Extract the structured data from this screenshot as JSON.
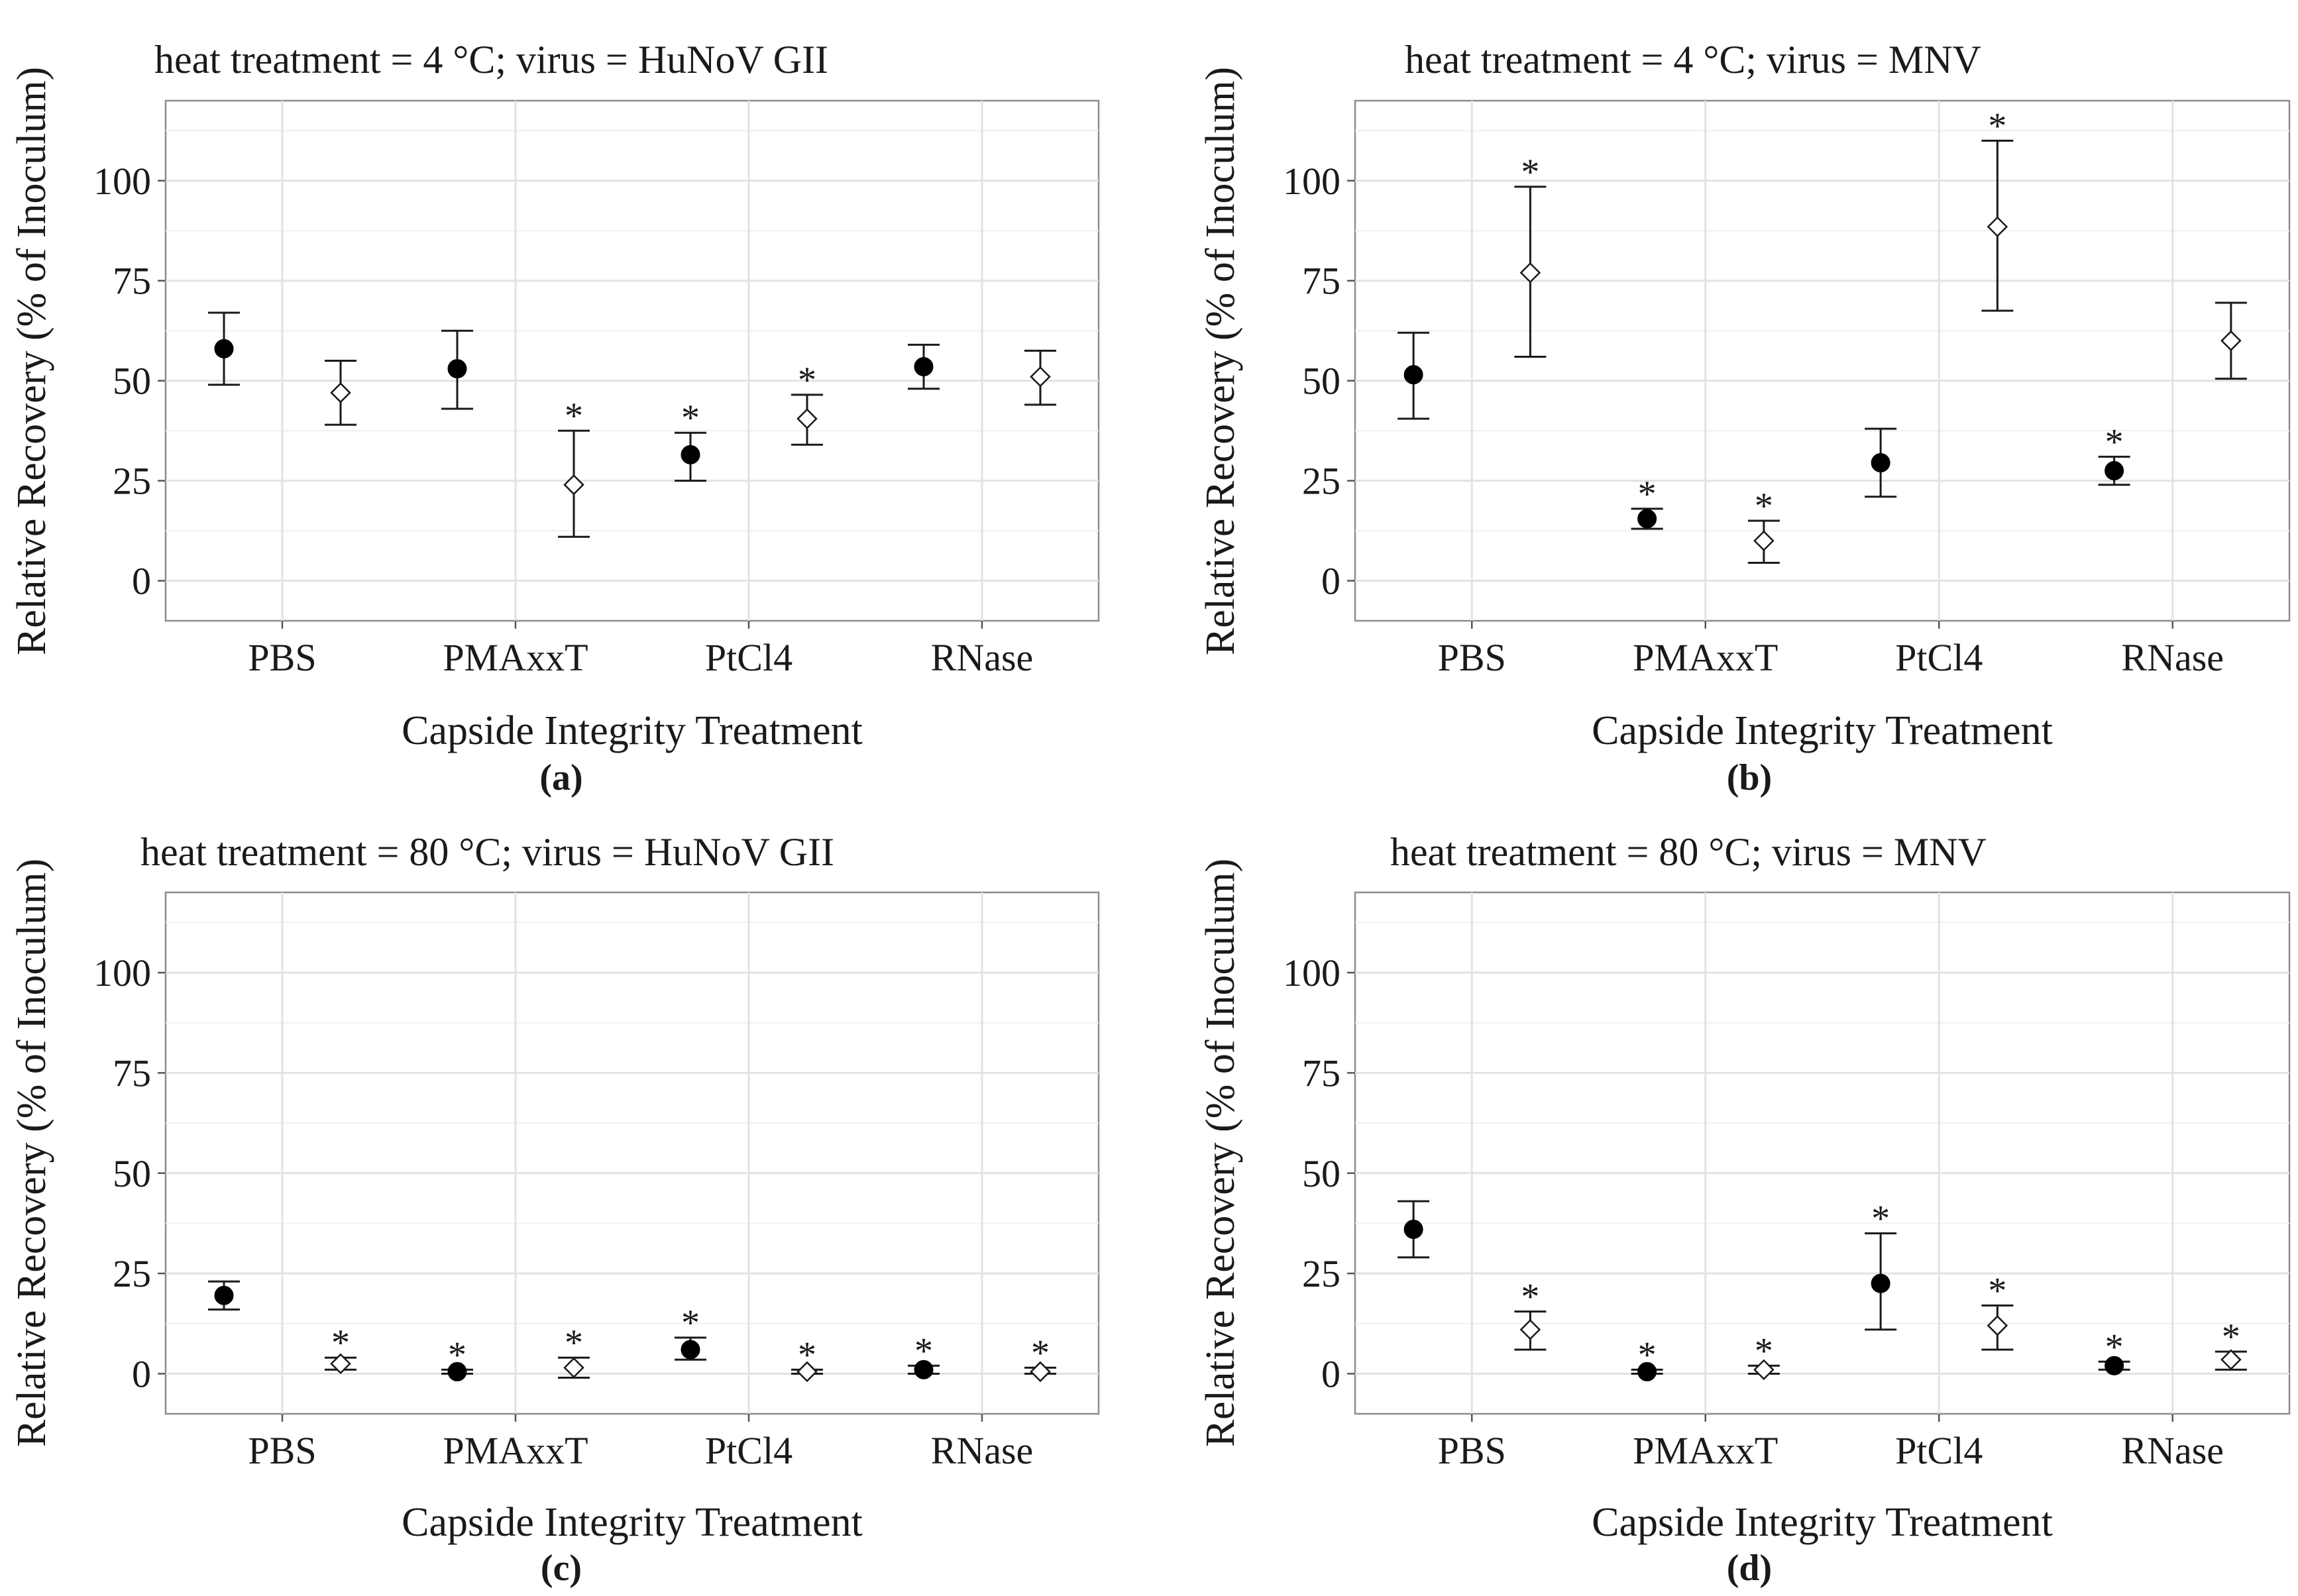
{
  "figure": {
    "panels": [
      {
        "id": "a",
        "label": "(a)",
        "title": "heat treatment = 4 °C; virus = HuNoV GII"
      },
      {
        "id": "b",
        "label": "(b)",
        "title": "heat treatment = 4 °C; virus = MNV"
      },
      {
        "id": "c",
        "label": "(c)",
        "title": "heat treatment = 80 °C; virus = HuNoV GII"
      },
      {
        "id": "d",
        "label": "(d)",
        "title": "heat treatment = 80 °C; virus = MNV"
      }
    ]
  },
  "chart_data": [
    {
      "type": "scatter",
      "title": "heat treatment = 4 °C; virus = HuNoV GII",
      "panel_label": "(a)",
      "xlabel": "Capside Integrity Treatment",
      "ylabel": "Relative Recovery (% of Inoculum)",
      "categories": [
        "PBS",
        "PMAxxT",
        "PtCl4",
        "RNase"
      ],
      "ylim": [
        -10,
        120
      ],
      "yticks": [
        0,
        25,
        50,
        75,
        100
      ],
      "grid": true,
      "series": [
        {
          "marker": "filled-circle",
          "values": [
            58,
            53,
            31.5,
            53.5
          ],
          "err_low": [
            49,
            43,
            25,
            48
          ],
          "err_high": [
            67,
            62.5,
            37,
            59
          ],
          "significant": [
            false,
            false,
            true,
            false
          ]
        },
        {
          "marker": "open-diamond",
          "values": [
            47,
            24,
            40.5,
            51
          ],
          "err_low": [
            39,
            11,
            34,
            44
          ],
          "err_high": [
            55,
            37.5,
            46.5,
            57.5
          ],
          "significant": [
            false,
            true,
            true,
            false
          ]
        }
      ]
    },
    {
      "type": "scatter",
      "title": "heat treatment = 4 °C; virus = MNV",
      "panel_label": "(b)",
      "xlabel": "Capside Integrity Treatment",
      "ylabel": "Relative Recovery (% of Inoculum)",
      "categories": [
        "PBS",
        "PMAxxT",
        "PtCl4",
        "RNase"
      ],
      "ylim": [
        -10,
        120
      ],
      "yticks": [
        0,
        25,
        50,
        75,
        100
      ],
      "grid": true,
      "series": [
        {
          "marker": "filled-circle",
          "values": [
            51.5,
            15.5,
            29.5,
            27.5
          ],
          "err_low": [
            40.5,
            13,
            21,
            24
          ],
          "err_high": [
            62,
            18,
            38,
            31
          ],
          "significant": [
            false,
            true,
            false,
            true
          ]
        },
        {
          "marker": "open-diamond",
          "values": [
            77,
            10,
            88.5,
            60
          ],
          "err_low": [
            56,
            4.5,
            67.5,
            50.5
          ],
          "err_high": [
            98.5,
            15,
            110,
            69.5
          ],
          "significant": [
            true,
            true,
            true,
            false
          ]
        }
      ]
    },
    {
      "type": "scatter",
      "title": "heat treatment = 80 °C; virus = HuNoV GII",
      "panel_label": "(c)",
      "xlabel": "Capside Integrity Treatment",
      "ylabel": "Relative Recovery (% of Inoculum)",
      "categories": [
        "PBS",
        "PMAxxT",
        "PtCl4",
        "RNase"
      ],
      "ylim": [
        -10,
        120
      ],
      "yticks": [
        0,
        25,
        50,
        75,
        100
      ],
      "grid": true,
      "series": [
        {
          "marker": "filled-circle",
          "values": [
            19.5,
            0.5,
            6,
            1
          ],
          "err_low": [
            16,
            0,
            3.5,
            0
          ],
          "err_high": [
            23,
            1,
            9,
            2
          ],
          "significant": [
            false,
            true,
            true,
            true
          ]
        },
        {
          "marker": "open-diamond",
          "values": [
            2.5,
            1.5,
            0.5,
            0.5
          ],
          "err_low": [
            1,
            -1,
            0,
            0
          ],
          "err_high": [
            4,
            4,
            1,
            1.5
          ],
          "significant": [
            true,
            true,
            true,
            true
          ]
        }
      ]
    },
    {
      "type": "scatter",
      "title": "heat treatment = 80 °C; virus = MNV",
      "panel_label": "(d)",
      "xlabel": "Capside Integrity Treatment",
      "ylabel": "Relative Recovery (% of Inoculum)",
      "categories": [
        "PBS",
        "PMAxxT",
        "PtCl4",
        "RNase"
      ],
      "ylim": [
        -10,
        120
      ],
      "yticks": [
        0,
        25,
        50,
        75,
        100
      ],
      "grid": true,
      "series": [
        {
          "marker": "filled-circle",
          "values": [
            36,
            0.5,
            22.5,
            2
          ],
          "err_low": [
            29,
            0,
            11,
            1
          ],
          "err_high": [
            43,
            1,
            35,
            3
          ],
          "significant": [
            false,
            true,
            true,
            true
          ]
        },
        {
          "marker": "open-diamond",
          "values": [
            11,
            1,
            12,
            3.5
          ],
          "err_low": [
            6,
            0,
            6,
            1
          ],
          "err_high": [
            15.5,
            2,
            17,
            5.5
          ],
          "significant": [
            true,
            true,
            true,
            true
          ]
        }
      ]
    }
  ]
}
